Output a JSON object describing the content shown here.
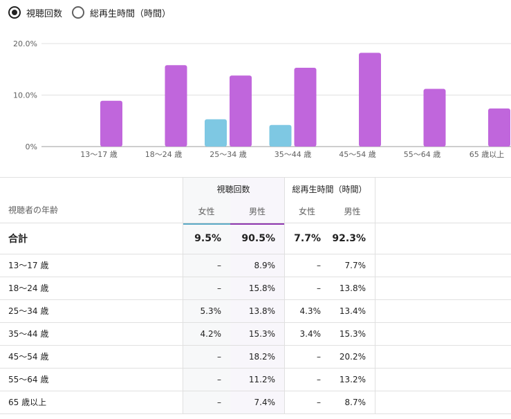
{
  "metric_toggle": {
    "options": [
      {
        "label": "視聴回数",
        "selected": true
      },
      {
        "label": "総再生時間（時間）",
        "selected": false
      }
    ]
  },
  "colors": {
    "female": "#7ec8e3",
    "male": "#c066dc",
    "female_underline": "#5aa9c6",
    "male_underline": "#8e35b0"
  },
  "chart_data": {
    "type": "bar",
    "categories": [
      "13～17 歳",
      "18～24 歳",
      "25～34 歳",
      "35～44 歳",
      "45～54 歳",
      "55～64 歳",
      "65 歳以上"
    ],
    "series": [
      {
        "name": "女性",
        "values": [
          0,
          0,
          5.3,
          4.2,
          0,
          0,
          0
        ]
      },
      {
        "name": "男性",
        "values": [
          8.9,
          15.8,
          13.8,
          15.3,
          18.2,
          11.2,
          7.4
        ]
      }
    ],
    "y_ticks": [
      "0%",
      "10.0%",
      "20.0%"
    ],
    "ylim": [
      0,
      20
    ],
    "grid": true,
    "legend": "none"
  },
  "table": {
    "age_header": "視聴者の年齢",
    "groups": [
      {
        "label": "視聴回数",
        "cols": [
          "女性",
          "男性"
        ]
      },
      {
        "label": "総再生時間（時間）",
        "cols": [
          "女性",
          "男性"
        ]
      }
    ],
    "total": {
      "label": "合計",
      "values": [
        "9.5%",
        "90.5%",
        "7.7%",
        "92.3%"
      ]
    },
    "rows": [
      {
        "age": "13～17 歳",
        "values": [
          "–",
          "8.9%",
          "–",
          "7.7%"
        ]
      },
      {
        "age": "18～24 歳",
        "values": [
          "–",
          "15.8%",
          "–",
          "13.8%"
        ]
      },
      {
        "age": "25～34 歳",
        "values": [
          "5.3%",
          "13.8%",
          "4.3%",
          "13.4%"
        ]
      },
      {
        "age": "35～44 歳",
        "values": [
          "4.2%",
          "15.3%",
          "3.4%",
          "15.3%"
        ]
      },
      {
        "age": "45～54 歳",
        "values": [
          "–",
          "18.2%",
          "–",
          "20.2%"
        ]
      },
      {
        "age": "55～64 歳",
        "values": [
          "–",
          "11.2%",
          "–",
          "13.2%"
        ]
      },
      {
        "age": "65 歳以上",
        "values": [
          "–",
          "7.4%",
          "–",
          "8.7%"
        ]
      }
    ]
  }
}
